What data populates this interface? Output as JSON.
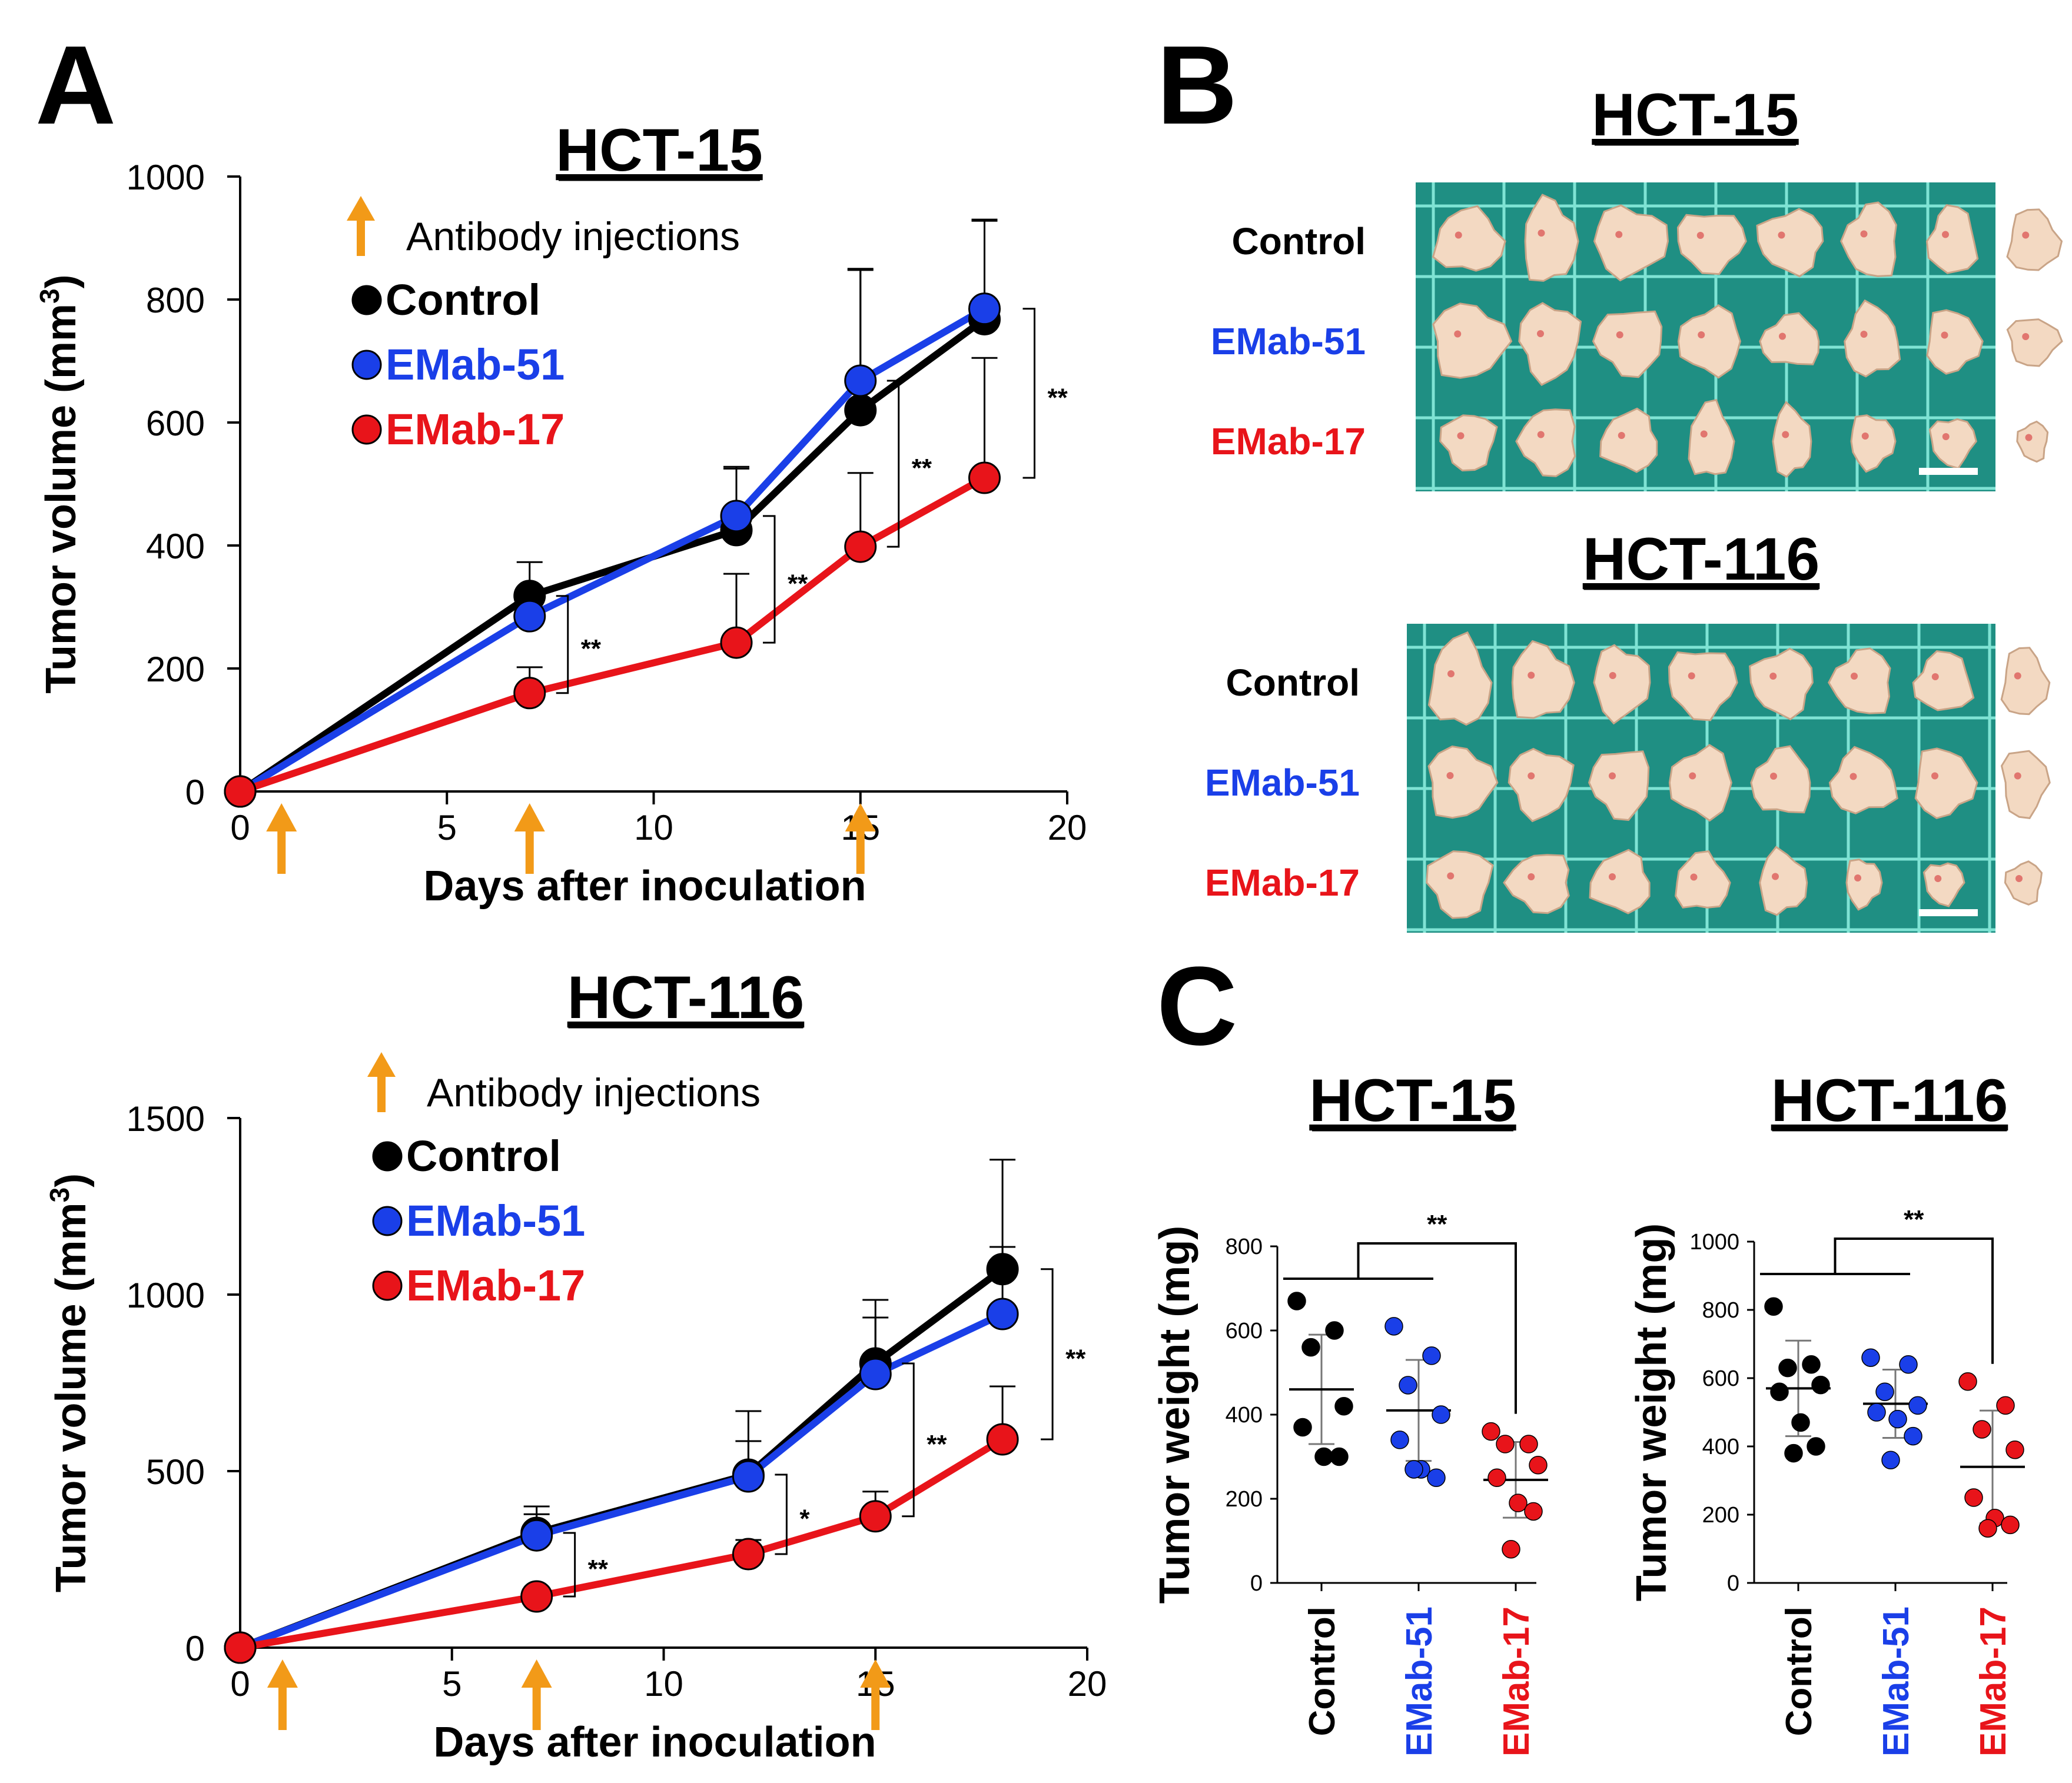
{
  "colors": {
    "control": "#000000",
    "emab51": "#1a3fe8",
    "emab17": "#e8141a",
    "arrow": "#f29a18",
    "photo": "#1f8f83"
  },
  "panels": {
    "a_letter": "A",
    "b_letter": "B",
    "c_letter": "C"
  },
  "injection_days": [
    1,
    7,
    15
  ],
  "legend": {
    "injection": "Antibody injections",
    "control": "Control",
    "emab51": "EMab-51",
    "emab17": "EMab-17"
  },
  "chart_data": [
    {
      "id": "hct15_growth",
      "type": "line",
      "title": "HCT-15",
      "xlabel": "Days after inoculation",
      "ylabel": "Tumor volume (mm",
      "ylabel_sup": "3",
      "ylabel_close": ")",
      "xlim": [
        0,
        20
      ],
      "ylim": [
        0,
        1000
      ],
      "xticks": [
        0,
        5,
        10,
        15,
        20
      ],
      "yticks": [
        0,
        200,
        400,
        600,
        800,
        1000
      ],
      "x": [
        0,
        7,
        12,
        15,
        18
      ],
      "series": [
        {
          "name": "Control",
          "key": "control",
          "values": [
            0,
            318,
            425,
            620,
            768
          ],
          "err": [
            0,
            55,
            100,
            230,
            160
          ]
        },
        {
          "name": "EMab-51",
          "key": "emab51",
          "values": [
            0,
            285,
            448,
            668,
            785
          ],
          "err": [
            0,
            0,
            80,
            180,
            145
          ]
        },
        {
          "name": "EMab-17",
          "key": "emab17",
          "values": [
            0,
            160,
            242,
            398,
            510
          ],
          "err": [
            0,
            42,
            112,
            120,
            195
          ]
        }
      ],
      "significance": [
        {
          "x": 7,
          "label": "**"
        },
        {
          "x": 12,
          "label": "**"
        },
        {
          "x": 15,
          "label": "**"
        },
        {
          "x": 18,
          "label": "**"
        }
      ]
    },
    {
      "id": "hct116_growth",
      "type": "line",
      "title": "HCT-116",
      "xlabel": "Days after inoculation",
      "ylabel": "Tumor volume (mm",
      "ylabel_sup": "3",
      "ylabel_close": ")",
      "xlim": [
        0,
        20
      ],
      "ylim": [
        0,
        1500
      ],
      "xticks": [
        0,
        5,
        10,
        15,
        20
      ],
      "yticks": [
        0,
        500,
        1000,
        1500
      ],
      "x": [
        0,
        7,
        12,
        15,
        18
      ],
      "series": [
        {
          "name": "Control",
          "key": "control",
          "values": [
            0,
            325,
            490,
            805,
            1072
          ],
          "err": [
            0,
            75,
            180,
            180,
            310
          ]
        },
        {
          "name": "EMab-51",
          "key": "emab51",
          "values": [
            0,
            318,
            485,
            775,
            945
          ],
          "err": [
            0,
            60,
            100,
            160,
            190
          ]
        },
        {
          "name": "EMab-17",
          "key": "emab17",
          "values": [
            0,
            145,
            265,
            372,
            590
          ],
          "err": [
            0,
            0,
            40,
            70,
            150
          ]
        }
      ],
      "significance": [
        {
          "x": 7,
          "label": "**"
        },
        {
          "x": 12,
          "label": "*"
        },
        {
          "x": 15,
          "label": "**"
        },
        {
          "x": 18,
          "label": "**"
        }
      ]
    },
    {
      "id": "hct15_weight",
      "type": "scatter",
      "title": "HCT-15",
      "ylabel": "Tumor weight (mg)",
      "ylim": [
        0,
        800
      ],
      "yticks": [
        0,
        200,
        400,
        600,
        800
      ],
      "categories": [
        "Control",
        "EMab-51",
        "EMab-17"
      ],
      "points": [
        [
          670,
          600,
          560,
          420,
          370,
          300,
          300
        ],
        [
          610,
          540,
          470,
          400,
          340,
          270,
          250,
          270
        ],
        [
          360,
          330,
          330,
          280,
          250,
          190,
          170,
          80
        ]
      ],
      "means": [
        460,
        410,
        245
      ],
      "sd": [
        130,
        120,
        90
      ],
      "significance": "**"
    },
    {
      "id": "hct116_weight",
      "type": "scatter",
      "title": "HCT-116",
      "ylabel": "Tumor weight (mg)",
      "ylim": [
        0,
        1000
      ],
      "yticks": [
        0,
        200,
        400,
        600,
        800,
        1000
      ],
      "categories": [
        "Control",
        "EMab-51",
        "EMab-17"
      ],
      "points": [
        [
          810,
          640,
          630,
          580,
          560,
          470,
          400,
          380
        ],
        [
          660,
          640,
          560,
          520,
          500,
          480,
          430,
          360
        ],
        [
          590,
          520,
          450,
          390,
          250,
          190,
          170,
          160
        ]
      ],
      "means": [
        570,
        525,
        340
      ],
      "sd": [
        140,
        100,
        165
      ],
      "significance": "**"
    }
  ],
  "photos": [
    {
      "title": "HCT-15",
      "rows": [
        "Control",
        "EMab-51",
        "EMab-17"
      ]
    },
    {
      "title": "HCT-116",
      "rows": [
        "Control",
        "EMab-51",
        "EMab-17"
      ]
    }
  ]
}
